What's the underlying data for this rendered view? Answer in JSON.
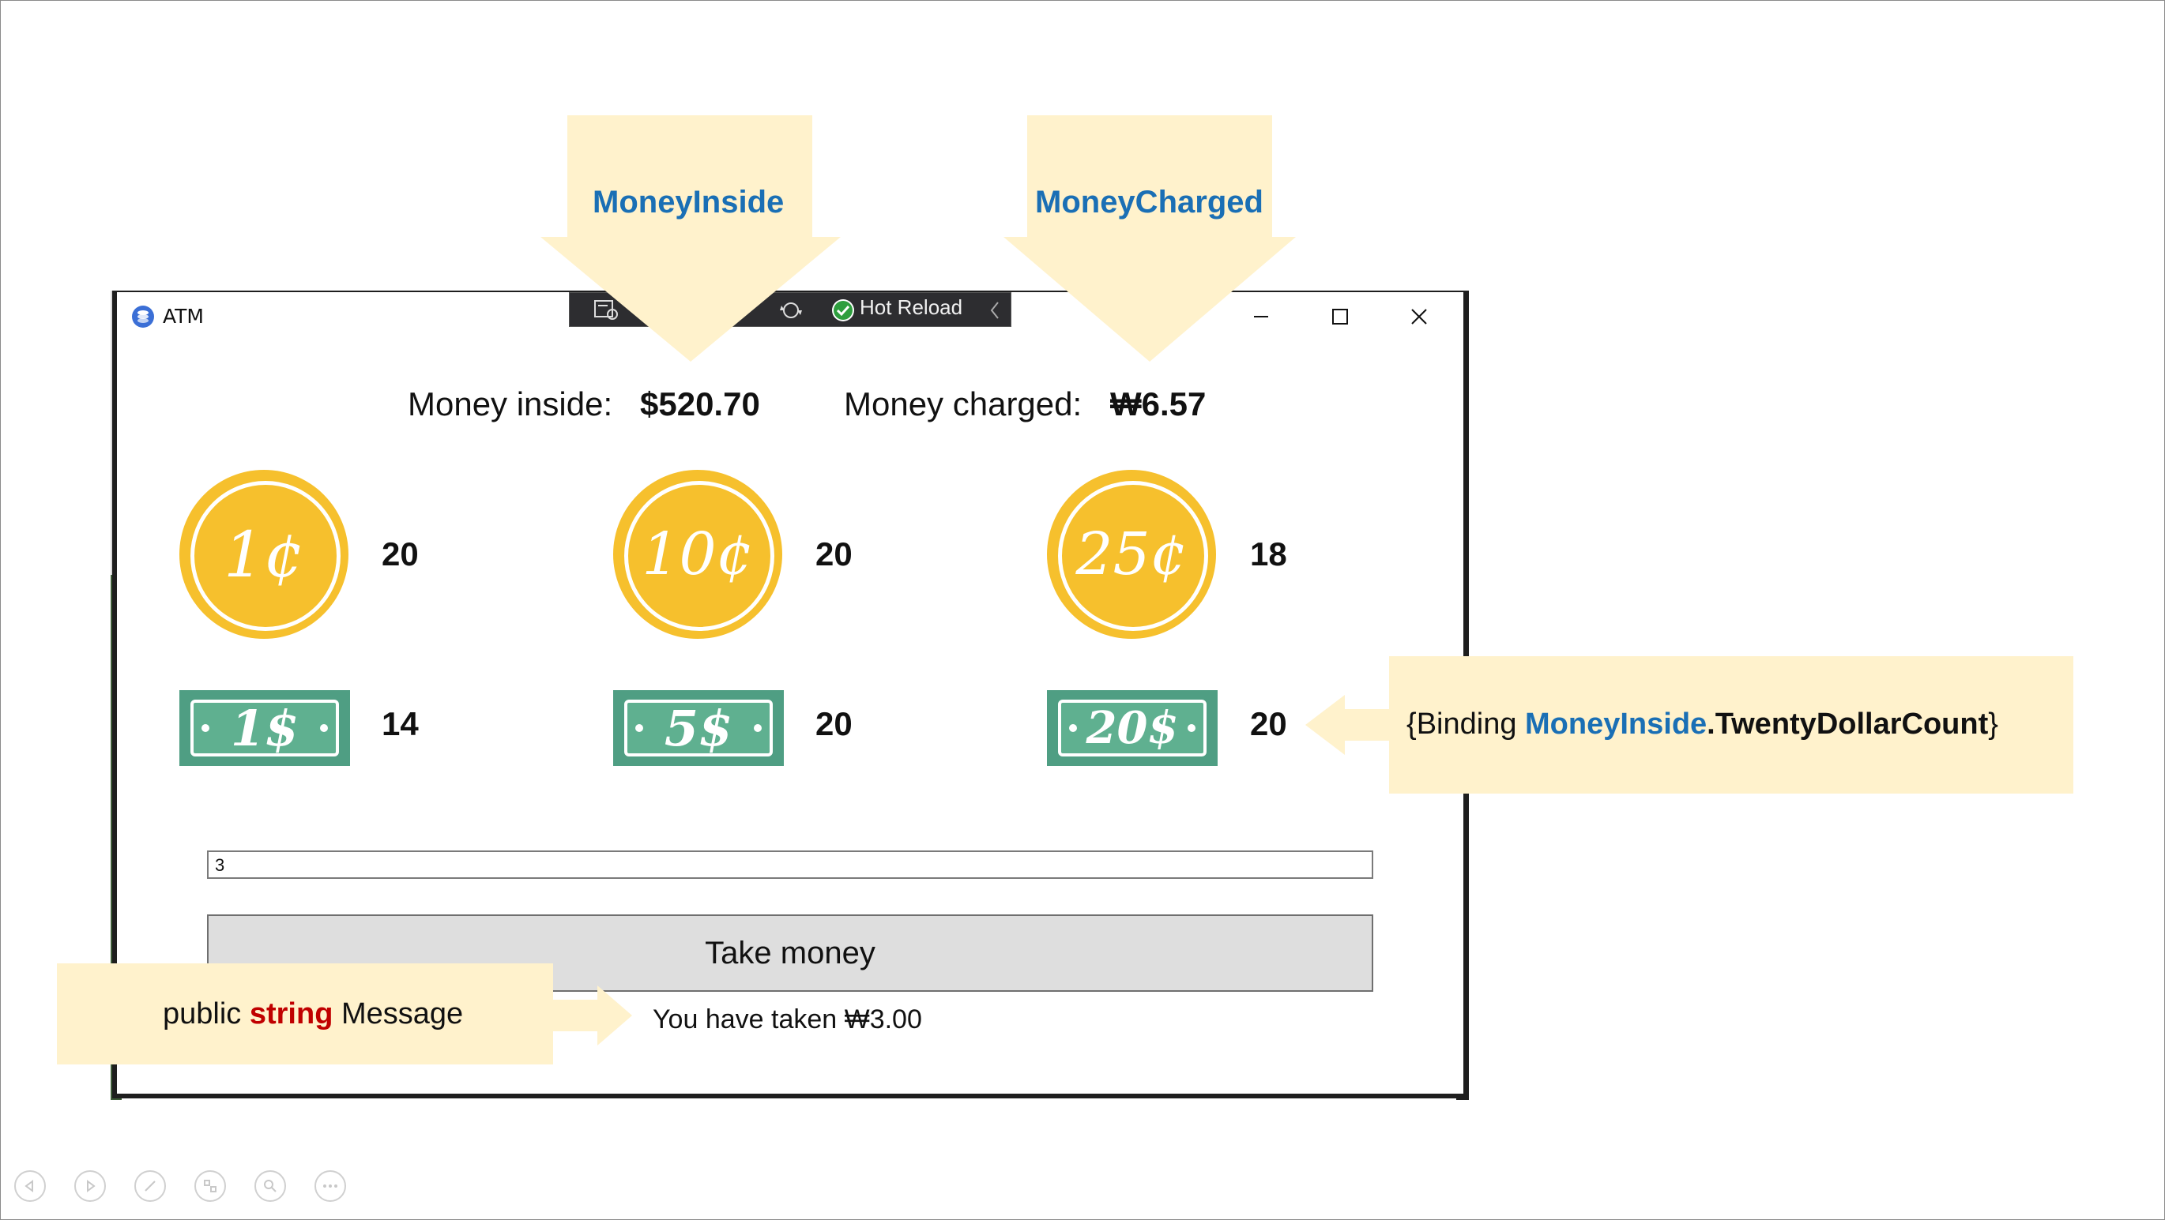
{
  "window": {
    "title": "ATM",
    "minimize_label": "–",
    "maximize_label": "□",
    "close_label": "✕"
  },
  "toolbar": {
    "hot_reload_label": "Hot Reload"
  },
  "header": {
    "money_inside_label": "Money inside:",
    "money_inside_value": "$520.70",
    "money_charged_label": "Money charged:",
    "money_charged_value": "₩6.57"
  },
  "coins": [
    {
      "label": "1¢",
      "count": "20"
    },
    {
      "label": "10¢",
      "count": "20"
    },
    {
      "label": "25¢",
      "count": "18"
    }
  ],
  "bills": [
    {
      "label": "1$",
      "count": "14"
    },
    {
      "label": "5$",
      "count": "20"
    },
    {
      "label": "20$",
      "count": "20"
    }
  ],
  "amount_input": {
    "value": "3"
  },
  "take_button": {
    "label": "Take money"
  },
  "message": {
    "text": "You have taken ₩3.00"
  },
  "callouts": {
    "money_inside": "MoneyInside",
    "money_charged": "MoneyCharged",
    "binding_prefix": "{Binding ",
    "binding_object": "MoneyInside",
    "binding_property": ".TwentyDollarCount",
    "binding_suffix": "}",
    "message_public": "public ",
    "message_type": "string",
    "message_name": " Message"
  },
  "colors": {
    "coin": "#f6c02d",
    "bill": "#4f9e83",
    "callout_bg": "#fff2cc",
    "callout_accent": "#1a6fb5",
    "keyword_red": "#c00000"
  }
}
